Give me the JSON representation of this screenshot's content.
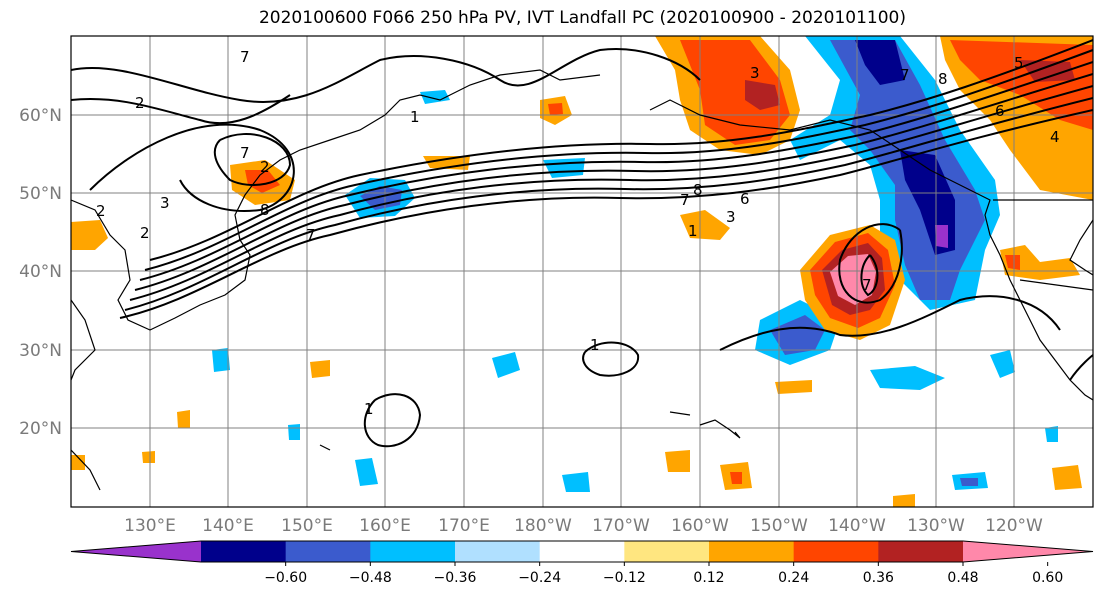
{
  "title": "2020100600 F066 250 hPa PV, IVT Landfall PC (2020100900 - 2020101100)",
  "lat_labels": [
    "60°N",
    "50°N",
    "40°N",
    "30°N",
    "20°N"
  ],
  "lon_labels": [
    "130°E",
    "140°E",
    "150°E",
    "160°E",
    "170°E",
    "180°W",
    "170°W",
    "160°W",
    "150°W",
    "140°W",
    "130°W",
    "120°W"
  ],
  "colorbar": {
    "colors": [
      "#9932cc",
      "#00008b",
      "#3b5bcd",
      "#00bfff",
      "#b0e0ff",
      "#ffffff",
      "#ffe680",
      "#ffa500",
      "#ff4500",
      "#b22222",
      "#ff88aa"
    ],
    "tick_labels": [
      "−0.60",
      "−0.48",
      "−0.36",
      "−0.24",
      "−0.12",
      "0.12",
      "0.24",
      "0.36",
      "0.48",
      "0.60"
    ]
  },
  "contour_labels": [
    "7",
    "2",
    "2",
    "7",
    "2",
    "3",
    "8",
    "7",
    "2",
    "1",
    "7",
    "8",
    "6",
    "3",
    "1",
    "7",
    "1",
    "1",
    "3",
    "8",
    "6",
    "4",
    "5",
    "7"
  ]
}
